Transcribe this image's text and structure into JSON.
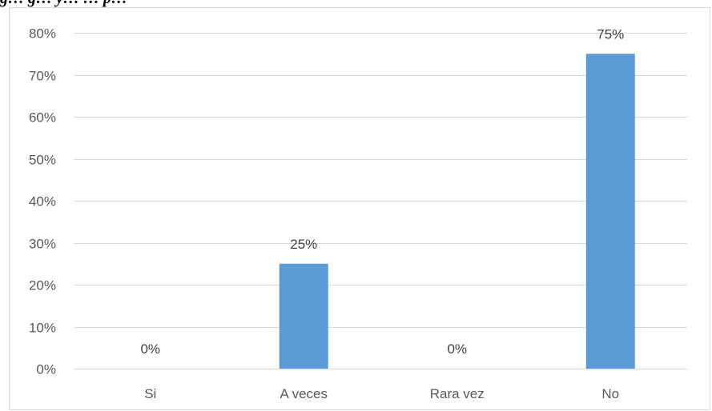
{
  "title_fragment": "g… g… y… … p…",
  "chart_data": {
    "type": "bar",
    "categories": [
      "Si",
      "A veces",
      "Rara vez",
      "No"
    ],
    "values": [
      0,
      25,
      0,
      75
    ],
    "data_labels": [
      "0%",
      "25%",
      "0%",
      "75%"
    ],
    "y_ticks": [
      "0%",
      "10%",
      "20%",
      "30%",
      "40%",
      "50%",
      "60%",
      "70%",
      "80%"
    ],
    "ylim": [
      0,
      80
    ],
    "grid": true,
    "legend": "none",
    "bar_color": "#5b9bd5",
    "gridline_color": "#d9d9d9"
  }
}
